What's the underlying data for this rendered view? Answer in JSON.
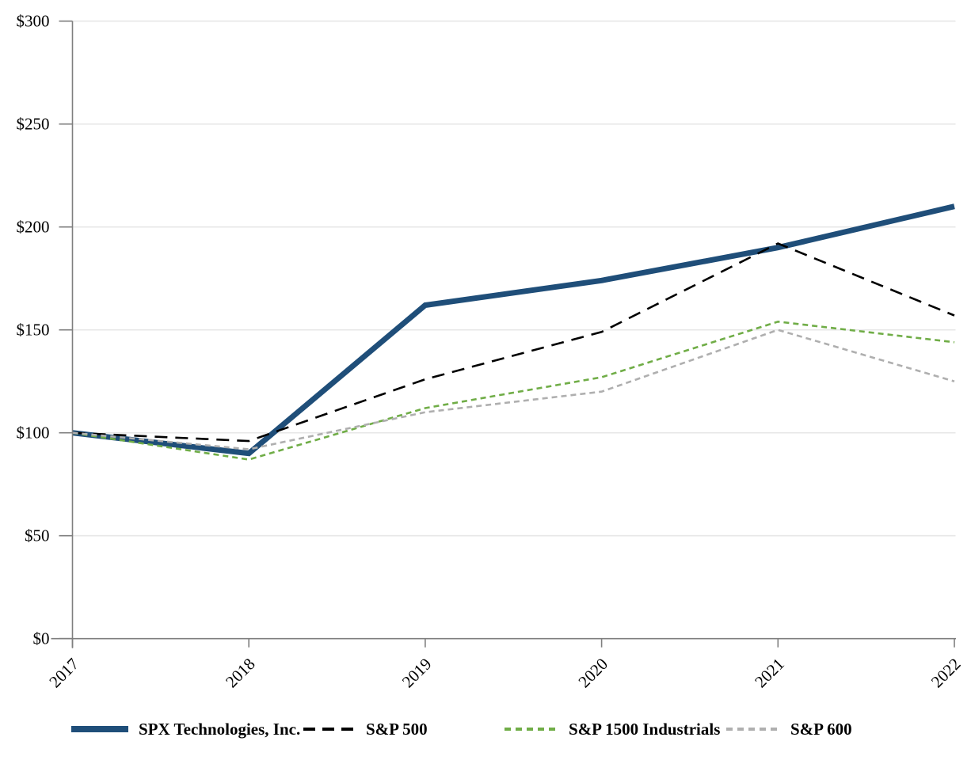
{
  "chart_data": {
    "type": "line",
    "title": "",
    "xlabel": "",
    "ylabel": "",
    "x_categories": [
      "2017",
      "2018",
      "2019",
      "2020",
      "2021",
      "2022"
    ],
    "ylim": [
      0,
      300
    ],
    "yticks": [
      0,
      50,
      100,
      150,
      200,
      250,
      300
    ],
    "ytick_labels": [
      "$0",
      "$50",
      "$100",
      "$150",
      "$200",
      "$250",
      "$300"
    ],
    "grid": "horizontal",
    "legend_position": "bottom",
    "axis_color": "#7F7F7F",
    "gridline_color": "#E7E7E7",
    "text_color": "#000000",
    "series": [
      {
        "name": "SPX Technologies, Inc.",
        "color": "#1F4E79",
        "line_style": "solid",
        "line_width": 7,
        "values": [
          100,
          90,
          162,
          174,
          190,
          210
        ]
      },
      {
        "name": "S&P 500",
        "color": "#000000",
        "line_style": "long-dash",
        "line_width": 2.6,
        "values": [
          100,
          96,
          126,
          149,
          192,
          157
        ]
      },
      {
        "name": "S&P 1500 Industrials",
        "color": "#70AD47",
        "line_style": "dash",
        "line_width": 2.6,
        "values": [
          100,
          87,
          112,
          127,
          154,
          144
        ]
      },
      {
        "name": "S&P 600",
        "color": "#AFAFAF",
        "line_style": "dash",
        "line_width": 2.6,
        "values": [
          100,
          92,
          110,
          120,
          150,
          125
        ]
      }
    ]
  }
}
